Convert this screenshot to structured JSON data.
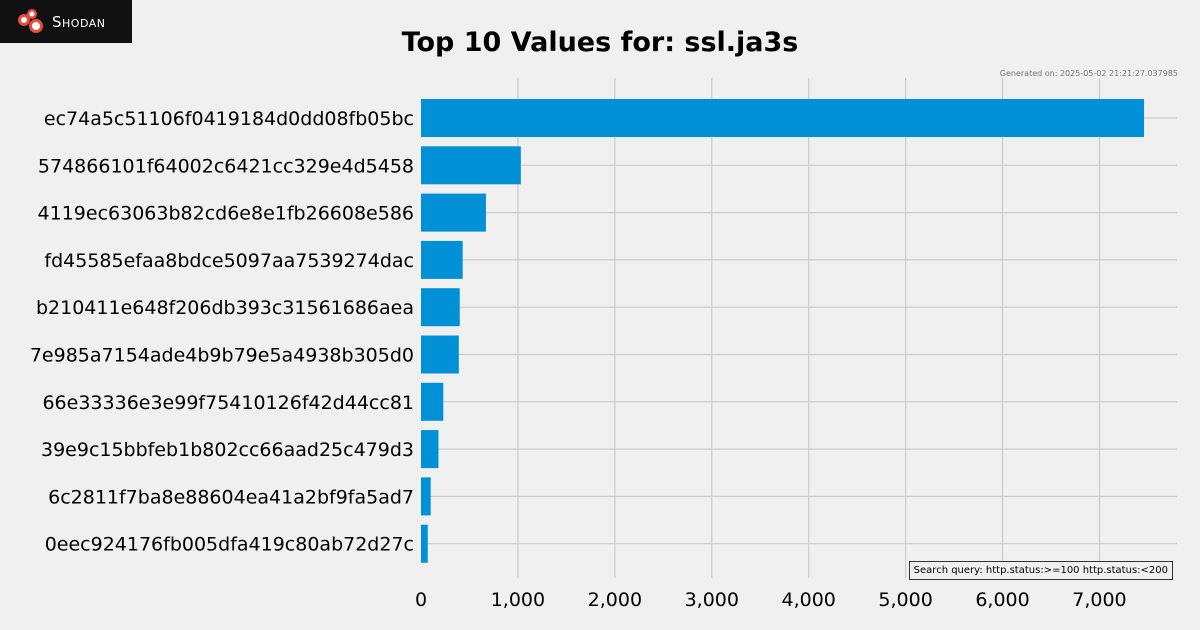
{
  "brand": {
    "logo_text": "Shodan",
    "logo_colors": [
      "#e74c3c",
      "#ffffff"
    ]
  },
  "header": {
    "generated": "Generated on: 2025-05-02 21:21:27.037985"
  },
  "footer": {
    "query": "Search query: http.status:>=100 http.status:<200"
  },
  "colors": {
    "bar": "#0290d6",
    "grid": "#cbcbcb",
    "background": "#f0f0f0"
  },
  "chart_data": {
    "type": "bar",
    "orientation": "horizontal",
    "title": "Top 10 Values for: ssl.ja3s",
    "xlabel": "",
    "ylabel": "",
    "xlim": [
      0,
      7800
    ],
    "xticks": [
      0,
      1000,
      2000,
      3000,
      4000,
      5000,
      6000,
      7000
    ],
    "xtick_labels": [
      "0",
      "1,000",
      "2,000",
      "3,000",
      "4,000",
      "5,000",
      "6,000",
      "7,000"
    ],
    "grid": true,
    "categories": [
      "ec74a5c51106f0419184d0dd08fb05bc",
      "574866101f64002c6421cc329e4d5458",
      "4119ec63063b82cd6e8e1fb26608e586",
      "fd45585efaa8bdce5097aa7539274dac",
      "b210411e648f206db393c31561686aea",
      "7e985a7154ade4b9b79e5a4938b305d0",
      "66e33336e3e99f75410126f42d44cc81",
      "39e9c15bbfeb1b802cc66aad25c479d3",
      "6c2811f7ba8e88604ea41a2bf9fa5ad7",
      "0eec924176fb005dfa419c80ab72d27c"
    ],
    "values": [
      7460,
      1030,
      670,
      430,
      400,
      390,
      230,
      180,
      100,
      70
    ]
  }
}
